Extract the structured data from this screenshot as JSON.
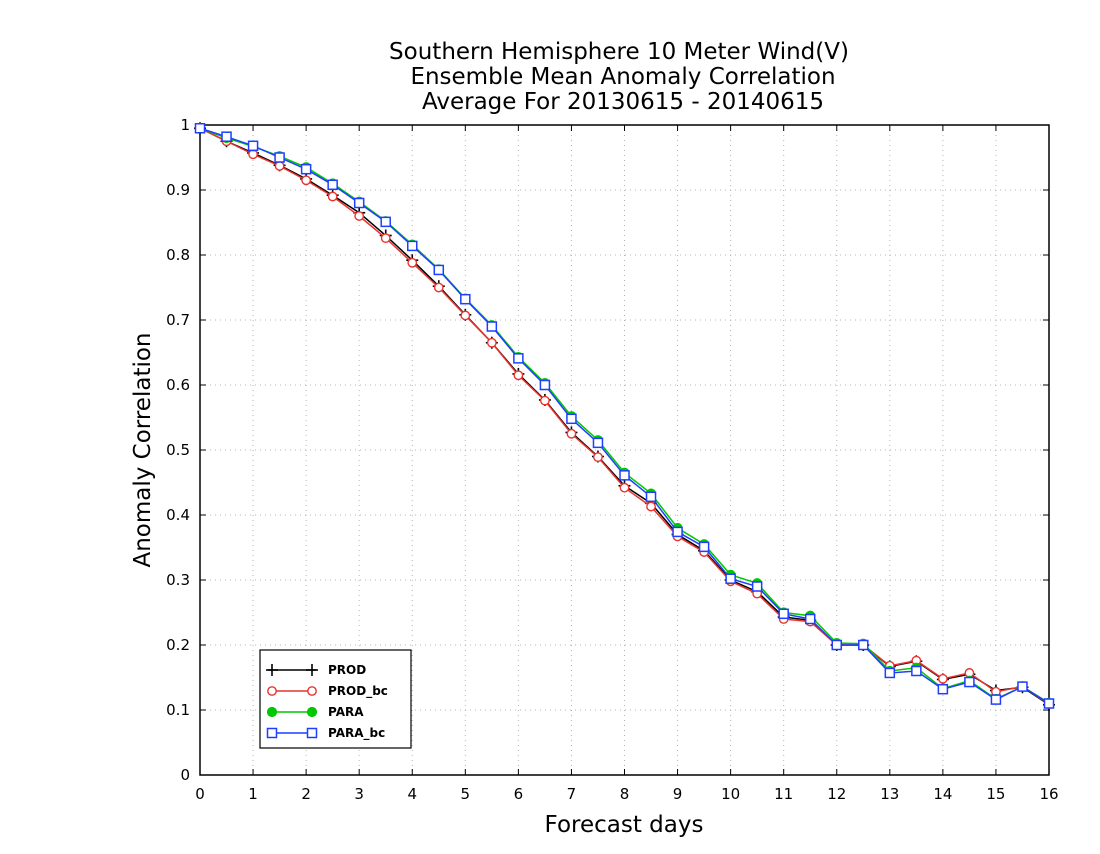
{
  "chart_data": {
    "type": "line",
    "title_lines": [
      "Southern Hemisphere 10 Meter Wind(V)",
      "Ensemble Mean Anomaly Correlation",
      "Average For 20130615 - 20140615"
    ],
    "xlabel": "Forecast days",
    "ylabel": "Anomaly Correlation",
    "xlim": [
      0,
      16
    ],
    "ylim": [
      0,
      1
    ],
    "x_ticks": [
      0,
      1,
      2,
      3,
      4,
      5,
      6,
      7,
      8,
      9,
      10,
      11,
      12,
      13,
      14,
      15,
      16
    ],
    "y_ticks": [
      0,
      0.1,
      0.2,
      0.3,
      0.4,
      0.5,
      0.6,
      0.7,
      0.8,
      0.9,
      1
    ],
    "y_tick_labels": [
      "0",
      "0.1",
      "0.2",
      "0.3",
      "0.4",
      "0.5",
      "0.6",
      "0.7",
      "0.8",
      "0.9",
      "1"
    ],
    "grid": true,
    "legend_position": "bottom-left",
    "x": [
      0,
      0.5,
      1,
      1.5,
      2,
      2.5,
      3,
      3.5,
      4,
      4.5,
      5,
      5.5,
      6,
      6.5,
      7,
      7.5,
      8,
      8.5,
      9,
      9.5,
      10,
      10.5,
      11,
      11.5,
      12,
      12.5,
      13,
      13.5,
      14,
      14.5,
      15,
      15.5,
      16
    ],
    "series": [
      {
        "name": "PROD",
        "color": "#000000",
        "marker": "plus",
        "values": [
          0.995,
          0.975,
          0.957,
          0.938,
          0.917,
          0.892,
          0.865,
          0.83,
          0.792,
          0.752,
          0.708,
          0.665,
          0.617,
          0.577,
          0.527,
          0.49,
          0.445,
          0.418,
          0.37,
          0.345,
          0.3,
          0.282,
          0.243,
          0.238,
          0.2,
          0.2,
          0.167,
          0.175,
          0.147,
          0.155,
          0.13,
          0.135,
          0.108
        ]
      },
      {
        "name": "PROD_bc",
        "color": "#e8332f",
        "marker": "circle",
        "values": [
          0.995,
          0.975,
          0.955,
          0.937,
          0.915,
          0.89,
          0.86,
          0.826,
          0.788,
          0.75,
          0.707,
          0.665,
          0.615,
          0.576,
          0.525,
          0.489,
          0.442,
          0.413,
          0.367,
          0.343,
          0.298,
          0.279,
          0.24,
          0.236,
          0.2,
          0.2,
          0.168,
          0.176,
          0.148,
          0.157,
          0.128,
          0.136,
          0.109
        ]
      },
      {
        "name": "PARA",
        "color": "#00c800",
        "marker": "filled-circle",
        "values": [
          0.995,
          0.98,
          0.967,
          0.952,
          0.935,
          0.91,
          0.882,
          0.852,
          0.816,
          0.778,
          0.733,
          0.692,
          0.643,
          0.603,
          0.552,
          0.515,
          0.465,
          0.433,
          0.38,
          0.355,
          0.308,
          0.295,
          0.25,
          0.245,
          0.203,
          0.202,
          0.16,
          0.165,
          0.133,
          0.145,
          0.117,
          0.136,
          0.111
        ]
      },
      {
        "name": "PARA_bc",
        "color": "#1f3fff",
        "marker": "square",
        "values": [
          0.995,
          0.982,
          0.968,
          0.95,
          0.932,
          0.908,
          0.88,
          0.851,
          0.814,
          0.777,
          0.732,
          0.69,
          0.641,
          0.6,
          0.548,
          0.511,
          0.461,
          0.428,
          0.374,
          0.351,
          0.302,
          0.29,
          0.248,
          0.24,
          0.2,
          0.2,
          0.157,
          0.16,
          0.132,
          0.143,
          0.116,
          0.136,
          0.11
        ]
      }
    ]
  }
}
